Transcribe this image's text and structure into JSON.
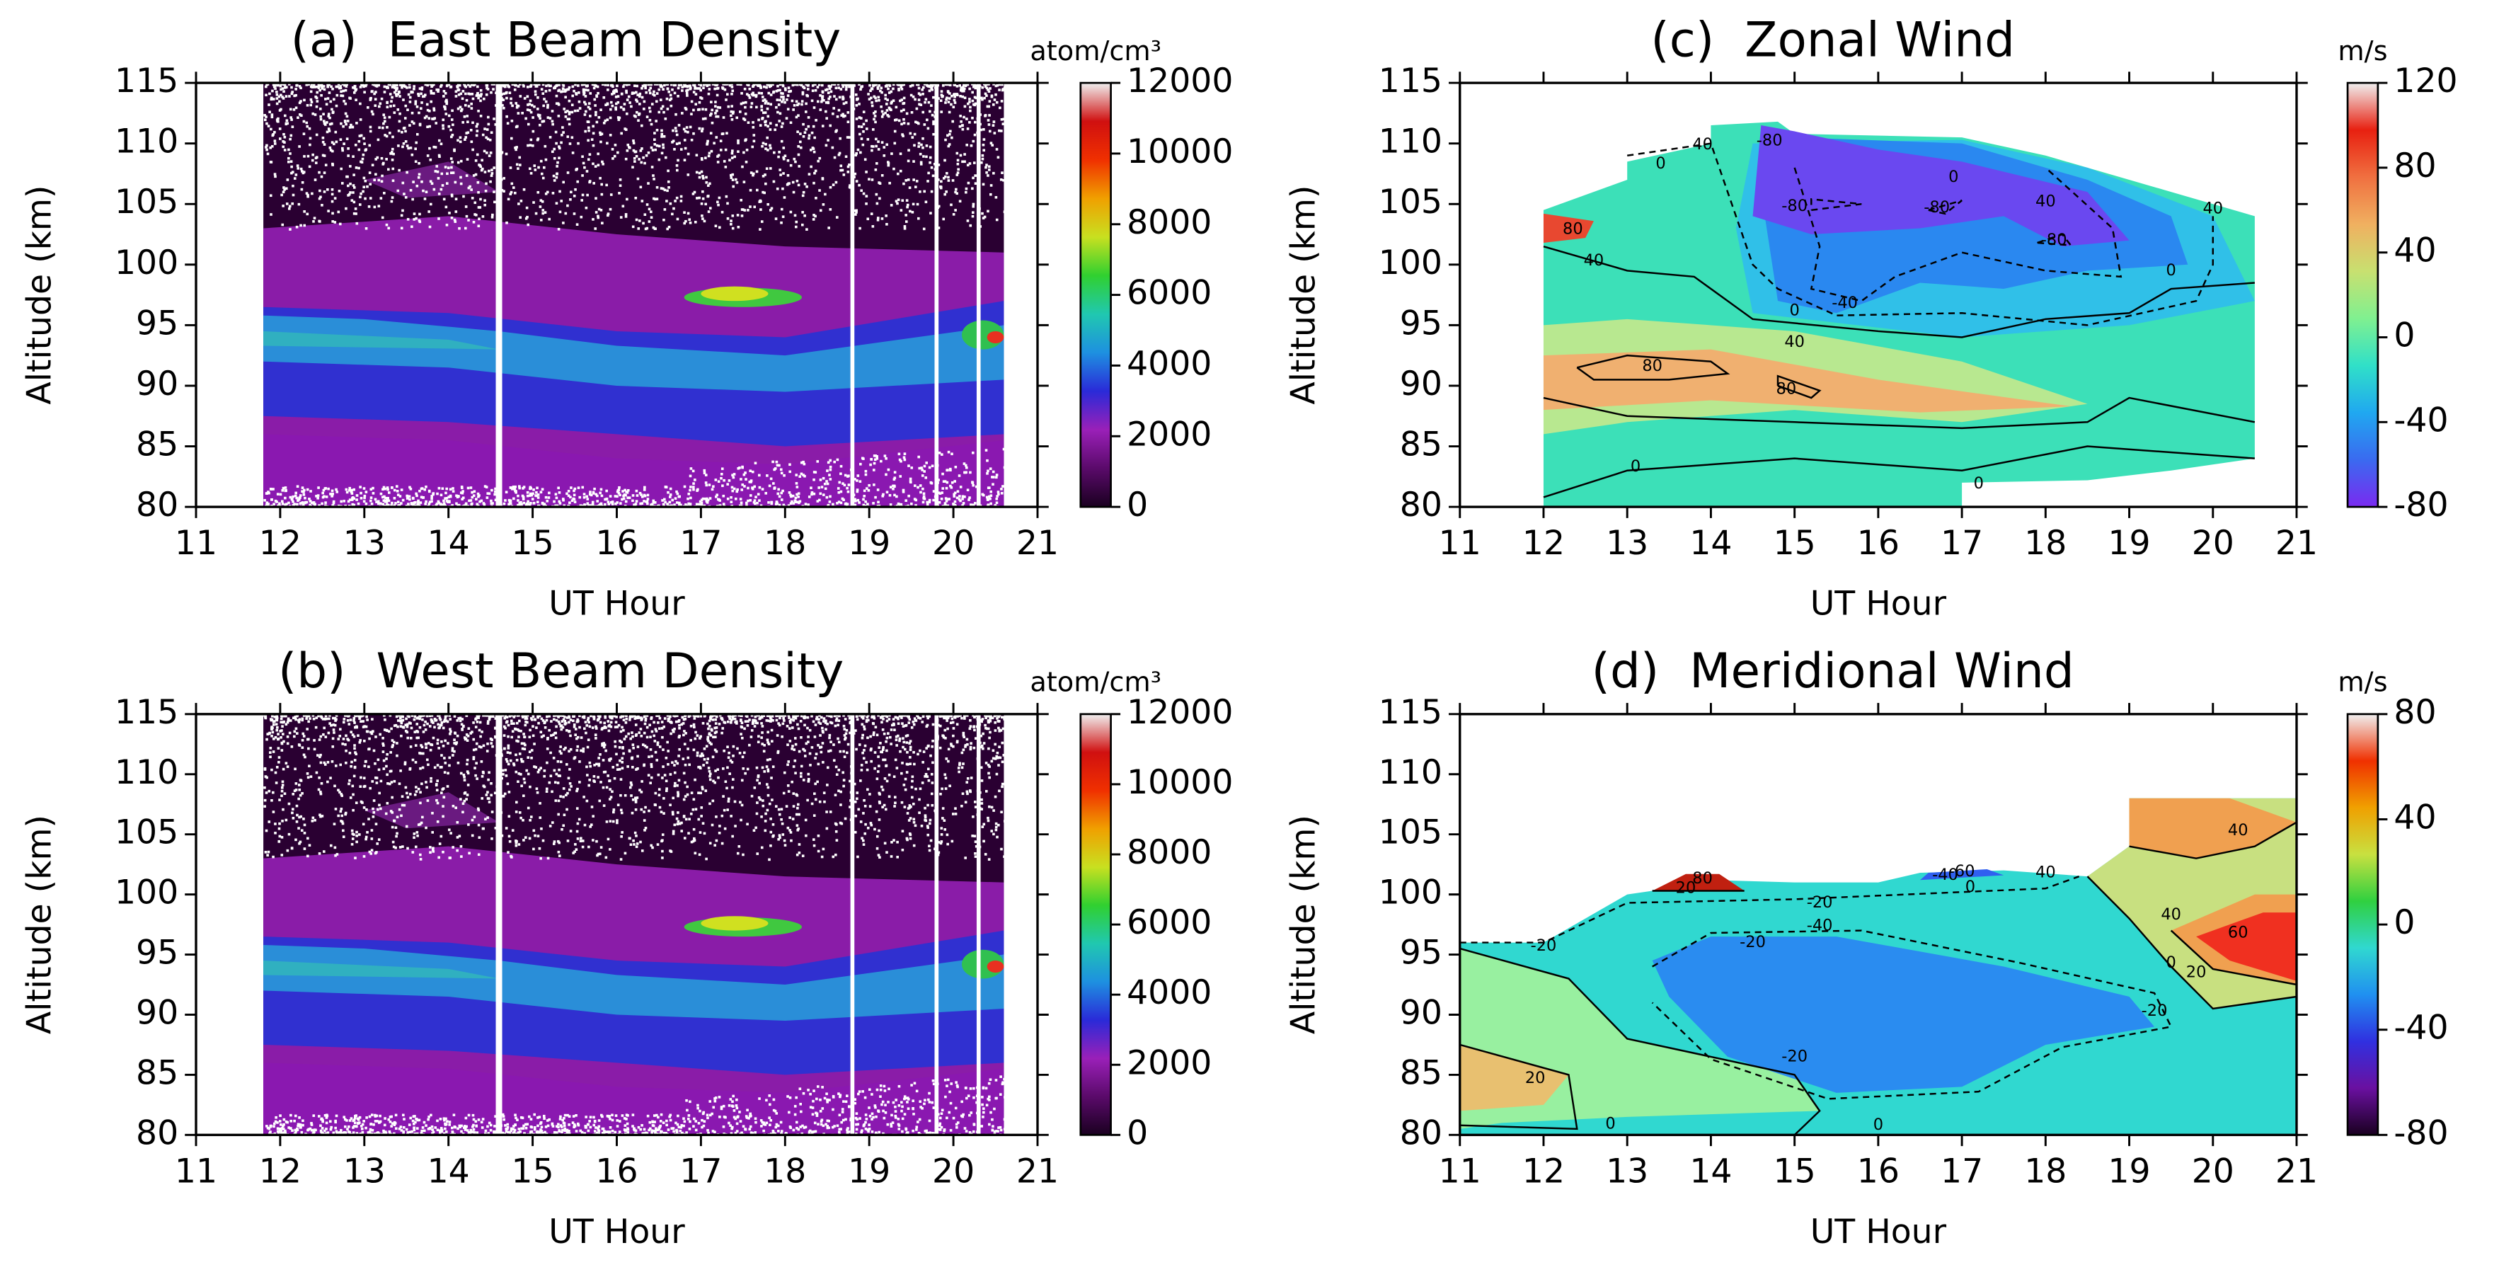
{
  "chart_data": [
    {
      "type": "heatmap",
      "title": "(a)  East Beam Density",
      "xlabel": "UT Hour",
      "ylabel": "Altitude (km)",
      "xlim": [
        11,
        21
      ],
      "xticks": [
        11,
        12,
        13,
        14,
        15,
        16,
        17,
        18,
        19,
        20,
        21
      ],
      "ylim": [
        80,
        115
      ],
      "yticks": [
        80,
        85,
        90,
        95,
        100,
        105,
        110,
        115
      ],
      "colorbar": {
        "label": "atom/cm³",
        "lim": [
          0,
          12000
        ],
        "ticks": [
          0,
          2000,
          4000,
          6000,
          8000,
          10000,
          12000
        ],
        "colormap": [
          "#1a0020",
          "#5a0a6a",
          "#9a20b8",
          "#2a2ad8",
          "#1e90e0",
          "#20c8b0",
          "#30d030",
          "#c8e020",
          "#f0a000",
          "#f03000",
          "#d01010",
          "#f0f0f0"
        ]
      }
    },
    {
      "type": "heatmap",
      "title": "(b)  West Beam Density",
      "xlabel": "UT Hour",
      "ylabel": "Altitude (km)",
      "xlim": [
        11,
        21
      ],
      "xticks": [
        11,
        12,
        13,
        14,
        15,
        16,
        17,
        18,
        19,
        20,
        21
      ],
      "ylim": [
        80,
        115
      ],
      "yticks": [
        80,
        85,
        90,
        95,
        100,
        105,
        110,
        115
      ],
      "colorbar": {
        "label": "atom/cm³",
        "lim": [
          0,
          12000
        ],
        "ticks": [
          0,
          2000,
          4000,
          6000,
          8000,
          10000,
          12000
        ],
        "colormap": [
          "#1a0020",
          "#5a0a6a",
          "#9a20b8",
          "#2a2ad8",
          "#1e90e0",
          "#20c8b0",
          "#30d030",
          "#c8e020",
          "#f0a000",
          "#f03000",
          "#d01010",
          "#f0f0f0"
        ]
      }
    },
    {
      "type": "contour",
      "title": "(c)  Zonal Wind",
      "xlabel": "UT Hour",
      "ylabel": "Altitude (km)",
      "xlim": [
        11,
        21
      ],
      "xticks": [
        11,
        12,
        13,
        14,
        15,
        16,
        17,
        18,
        19,
        20,
        21
      ],
      "ylim": [
        80,
        115
      ],
      "yticks": [
        80,
        85,
        90,
        95,
        100,
        105,
        110,
        115
      ],
      "contour_levels": [
        -80,
        -40,
        0,
        40,
        80
      ],
      "colorbar": {
        "label": "m/s",
        "lim": [
          -80,
          120
        ],
        "ticks": [
          -80,
          -40,
          0,
          40,
          80,
          120
        ],
        "colormap": [
          "#7a2af0",
          "#3a6af0",
          "#20a8f0",
          "#30e0c8",
          "#80f090",
          "#c8e070",
          "#f0b060",
          "#f07040",
          "#e82010",
          "#f0f0f0"
        ]
      }
    },
    {
      "type": "contour",
      "title": "(d)  Meridional Wind",
      "xlabel": "UT Hour",
      "ylabel": "Altitude (km)",
      "xlim": [
        11,
        21
      ],
      "xticks": [
        11,
        12,
        13,
        14,
        15,
        16,
        17,
        18,
        19,
        20,
        21
      ],
      "ylim": [
        80,
        115
      ],
      "yticks": [
        80,
        85,
        90,
        95,
        100,
        105,
        110,
        115
      ],
      "contour_levels": [
        -80,
        -60,
        -40,
        -20,
        0,
        20,
        40,
        60,
        80
      ],
      "colorbar": {
        "label": "m/s",
        "lim": [
          -80,
          80
        ],
        "ticks": [
          -80,
          -40,
          0,
          40,
          80
        ],
        "colormap": [
          "#1a0020",
          "#6a10a0",
          "#3030e0",
          "#2090f0",
          "#30d8d0",
          "#30d040",
          "#c8e040",
          "#f0a000",
          "#f03000",
          "#f0f0f0"
        ]
      }
    }
  ]
}
